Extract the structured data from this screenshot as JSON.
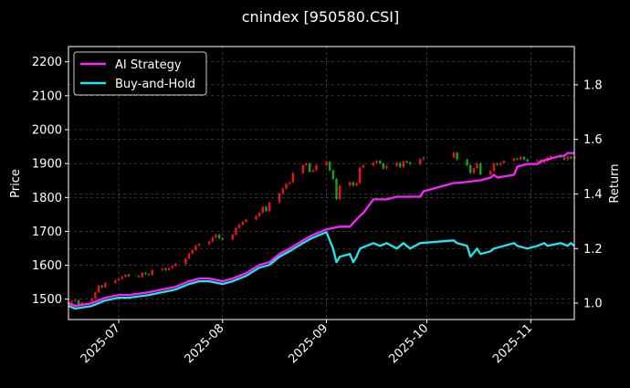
{
  "chart_data": {
    "type": "line",
    "title": "cnindex [950580.CSI]",
    "ylabel_left": "Price",
    "ylabel_right": "Return",
    "xlabel": "",
    "x_range": [
      "2025-06-16",
      "2025-11-14"
    ],
    "ylim_left": [
      1440,
      2245
    ],
    "ylim_right": [
      0.94,
      1.94
    ],
    "x_ticks": [
      {
        "date": "2025-07-01",
        "label": "2025-07"
      },
      {
        "date": "2025-08-01",
        "label": "2025-08"
      },
      {
        "date": "2025-09-01",
        "label": "2025-09"
      },
      {
        "date": "2025-10-01",
        "label": "2025-10"
      },
      {
        "date": "2025-11-01",
        "label": "2025-11"
      }
    ],
    "y_left_ticks": [
      1500,
      1600,
      1700,
      1800,
      1900,
      2000,
      2100,
      2200
    ],
    "y_right_ticks": [
      1.0,
      1.2,
      1.4,
      1.6,
      1.8
    ],
    "grid": true,
    "legend_position": "top-left",
    "colors": {
      "background": "#000000",
      "up": "#e8141c",
      "down": "#17a317",
      "ai_strategy": "#ff22ff",
      "buy_and_hold": "#22e5f0",
      "grid": "#555555"
    },
    "candles_close": [
      [
        "2025-06-16",
        1490
      ],
      [
        "2025-06-17",
        1494
      ],
      [
        "2025-06-18",
        1497
      ],
      [
        "2025-06-19",
        1484
      ],
      [
        "2025-06-20",
        1490
      ],
      [
        "2025-06-23",
        1502
      ],
      [
        "2025-06-24",
        1520
      ],
      [
        "2025-06-25",
        1540
      ],
      [
        "2025-06-26",
        1535
      ],
      [
        "2025-06-27",
        1548
      ],
      [
        "2025-06-30",
        1555
      ],
      [
        "2025-07-01",
        1560
      ],
      [
        "2025-07-02",
        1566
      ],
      [
        "2025-07-03",
        1572
      ],
      [
        "2025-07-04",
        1568
      ],
      [
        "2025-07-07",
        1565
      ],
      [
        "2025-07-08",
        1578
      ],
      [
        "2025-07-09",
        1574
      ],
      [
        "2025-07-10",
        1572
      ],
      [
        "2025-07-11",
        1586
      ],
      [
        "2025-07-14",
        1590
      ],
      [
        "2025-07-15",
        1586
      ],
      [
        "2025-07-16",
        1592
      ],
      [
        "2025-07-17",
        1598
      ],
      [
        "2025-07-18",
        1604
      ],
      [
        "2025-07-21",
        1620
      ],
      [
        "2025-07-22",
        1635
      ],
      [
        "2025-07-23",
        1645
      ],
      [
        "2025-07-24",
        1658
      ],
      [
        "2025-07-25",
        1662
      ],
      [
        "2025-07-28",
        1670
      ],
      [
        "2025-07-29",
        1682
      ],
      [
        "2025-07-30",
        1690
      ],
      [
        "2025-07-31",
        1680
      ],
      [
        "2025-08-01",
        1676
      ],
      [
        "2025-08-04",
        1690
      ],
      [
        "2025-08-05",
        1710
      ],
      [
        "2025-08-06",
        1720
      ],
      [
        "2025-08-07",
        1728
      ],
      [
        "2025-08-08",
        1735
      ],
      [
        "2025-08-11",
        1745
      ],
      [
        "2025-08-12",
        1755
      ],
      [
        "2025-08-13",
        1772
      ],
      [
        "2025-08-14",
        1760
      ],
      [
        "2025-08-15",
        1785
      ],
      [
        "2025-08-18",
        1812
      ],
      [
        "2025-08-19",
        1826
      ],
      [
        "2025-08-20",
        1840
      ],
      [
        "2025-08-21",
        1845
      ],
      [
        "2025-08-22",
        1872
      ],
      [
        "2025-08-25",
        1895
      ],
      [
        "2025-08-26",
        1900
      ],
      [
        "2025-08-27",
        1876
      ],
      [
        "2025-08-28",
        1880
      ],
      [
        "2025-08-29",
        1895
      ],
      [
        "2025-09-01",
        1905
      ],
      [
        "2025-09-02",
        1880
      ],
      [
        "2025-09-03",
        1855
      ],
      [
        "2025-09-04",
        1795
      ],
      [
        "2025-09-05",
        1835
      ],
      [
        "2025-09-08",
        1845
      ],
      [
        "2025-09-09",
        1835
      ],
      [
        "2025-09-10",
        1842
      ],
      [
        "2025-09-11",
        1888
      ],
      [
        "2025-09-12",
        1895
      ],
      [
        "2025-09-15",
        1902
      ],
      [
        "2025-09-16",
        1908
      ],
      [
        "2025-09-17",
        1900
      ],
      [
        "2025-09-18",
        1885
      ],
      [
        "2025-09-19",
        1893
      ],
      [
        "2025-09-22",
        1902
      ],
      [
        "2025-09-23",
        1889
      ],
      [
        "2025-09-24",
        1907
      ],
      [
        "2025-09-25",
        1903
      ],
      [
        "2025-09-26",
        1898
      ],
      [
        "2025-09-29",
        1913
      ],
      [
        "2025-09-30",
        1918
      ],
      [
        "2025-10-09",
        1932
      ],
      [
        "2025-10-10",
        1912
      ],
      [
        "2025-10-13",
        1895
      ],
      [
        "2025-10-14",
        1872
      ],
      [
        "2025-10-15",
        1886
      ],
      [
        "2025-10-16",
        1900
      ],
      [
        "2025-10-17",
        1868
      ],
      [
        "2025-10-20",
        1878
      ],
      [
        "2025-10-21",
        1900
      ],
      [
        "2025-10-22",
        1896
      ],
      [
        "2025-10-23",
        1902
      ],
      [
        "2025-10-24",
        1908
      ],
      [
        "2025-10-27",
        1915
      ],
      [
        "2025-10-28",
        1912
      ],
      [
        "2025-10-29",
        1920
      ],
      [
        "2025-10-30",
        1912
      ],
      [
        "2025-10-31",
        1906
      ],
      [
        "2025-11-03",
        1910
      ],
      [
        "2025-11-04",
        1902
      ],
      [
        "2025-11-05",
        1908
      ],
      [
        "2025-11-06",
        1918
      ],
      [
        "2025-11-07",
        1922
      ],
      [
        "2025-11-10",
        1918
      ],
      [
        "2025-11-11",
        1912
      ],
      [
        "2025-11-12",
        1920
      ],
      [
        "2025-11-13",
        1915
      ],
      [
        "2025-11-14",
        1920
      ]
    ],
    "series": [
      {
        "name": "AI Strategy",
        "axis": "right",
        "points": [
          [
            "2025-06-16",
            1.0
          ],
          [
            "2025-06-18",
            0.99
          ],
          [
            "2025-06-23",
            1.0
          ],
          [
            "2025-06-27",
            1.02
          ],
          [
            "2025-07-01",
            1.03
          ],
          [
            "2025-07-04",
            1.03
          ],
          [
            "2025-07-10",
            1.04
          ],
          [
            "2025-07-14",
            1.05
          ],
          [
            "2025-07-18",
            1.06
          ],
          [
            "2025-07-22",
            1.08
          ],
          [
            "2025-07-25",
            1.09
          ],
          [
            "2025-07-28",
            1.09
          ],
          [
            "2025-08-01",
            1.08
          ],
          [
            "2025-08-04",
            1.09
          ],
          [
            "2025-08-08",
            1.11
          ],
          [
            "2025-08-12",
            1.14
          ],
          [
            "2025-08-15",
            1.15
          ],
          [
            "2025-08-18",
            1.18
          ],
          [
            "2025-08-21",
            1.2
          ],
          [
            "2025-08-25",
            1.23
          ],
          [
            "2025-08-28",
            1.25
          ],
          [
            "2025-09-01",
            1.27
          ],
          [
            "2025-09-05",
            1.28
          ],
          [
            "2025-09-08",
            1.28
          ],
          [
            "2025-09-11",
            1.32
          ],
          [
            "2025-09-12",
            1.33
          ],
          [
            "2025-09-15",
            1.38
          ],
          [
            "2025-09-19",
            1.38
          ],
          [
            "2025-09-22",
            1.39
          ],
          [
            "2025-09-29",
            1.39
          ],
          [
            "2025-09-30",
            1.41
          ],
          [
            "2025-10-09",
            1.44
          ],
          [
            "2025-10-10",
            1.44
          ],
          [
            "2025-10-17",
            1.45
          ],
          [
            "2025-10-20",
            1.46
          ],
          [
            "2025-10-21",
            1.47
          ],
          [
            "2025-10-22",
            1.46
          ],
          [
            "2025-10-27",
            1.47
          ],
          [
            "2025-10-28",
            1.5
          ],
          [
            "2025-10-31",
            1.51
          ],
          [
            "2025-11-03",
            1.51
          ],
          [
            "2025-11-04",
            1.52
          ],
          [
            "2025-11-07",
            1.53
          ],
          [
            "2025-11-10",
            1.54
          ],
          [
            "2025-11-11",
            1.54
          ],
          [
            "2025-11-12",
            1.55
          ],
          [
            "2025-11-14",
            1.55
          ]
        ]
      },
      {
        "name": "Buy-and-Hold",
        "axis": "right",
        "points": [
          [
            "2025-06-16",
            0.99
          ],
          [
            "2025-06-18",
            0.98
          ],
          [
            "2025-06-23",
            0.99
          ],
          [
            "2025-06-27",
            1.01
          ],
          [
            "2025-07-01",
            1.02
          ],
          [
            "2025-07-04",
            1.02
          ],
          [
            "2025-07-10",
            1.03
          ],
          [
            "2025-07-14",
            1.04
          ],
          [
            "2025-07-18",
            1.05
          ],
          [
            "2025-07-22",
            1.07
          ],
          [
            "2025-07-25",
            1.08
          ],
          [
            "2025-07-28",
            1.08
          ],
          [
            "2025-08-01",
            1.07
          ],
          [
            "2025-08-04",
            1.08
          ],
          [
            "2025-08-08",
            1.1
          ],
          [
            "2025-08-12",
            1.13
          ],
          [
            "2025-08-15",
            1.14
          ],
          [
            "2025-08-18",
            1.17
          ],
          [
            "2025-08-21",
            1.19
          ],
          [
            "2025-08-25",
            1.22
          ],
          [
            "2025-08-28",
            1.24
          ],
          [
            "2025-09-01",
            1.26
          ],
          [
            "2025-09-02",
            1.23
          ],
          [
            "2025-09-03",
            1.2
          ],
          [
            "2025-09-04",
            1.15
          ],
          [
            "2025-09-05",
            1.17
          ],
          [
            "2025-09-08",
            1.18
          ],
          [
            "2025-09-09",
            1.15
          ],
          [
            "2025-09-10",
            1.17
          ],
          [
            "2025-09-11",
            1.2
          ],
          [
            "2025-09-15",
            1.22
          ],
          [
            "2025-09-17",
            1.21
          ],
          [
            "2025-09-19",
            1.22
          ],
          [
            "2025-09-22",
            1.2
          ],
          [
            "2025-09-24",
            1.22
          ],
          [
            "2025-09-26",
            1.2
          ],
          [
            "2025-09-29",
            1.22
          ],
          [
            "2025-10-09",
            1.23
          ],
          [
            "2025-10-10",
            1.22
          ],
          [
            "2025-10-13",
            1.21
          ],
          [
            "2025-10-14",
            1.17
          ],
          [
            "2025-10-16",
            1.2
          ],
          [
            "2025-10-17",
            1.18
          ],
          [
            "2025-10-20",
            1.19
          ],
          [
            "2025-10-21",
            1.2
          ],
          [
            "2025-10-24",
            1.21
          ],
          [
            "2025-10-27",
            1.22
          ],
          [
            "2025-10-28",
            1.21
          ],
          [
            "2025-10-31",
            1.2
          ],
          [
            "2025-11-03",
            1.21
          ],
          [
            "2025-11-05",
            1.22
          ],
          [
            "2025-11-06",
            1.21
          ],
          [
            "2025-11-10",
            1.22
          ],
          [
            "2025-11-12",
            1.21
          ],
          [
            "2025-11-13",
            1.22
          ],
          [
            "2025-11-14",
            1.21
          ]
        ]
      }
    ]
  }
}
